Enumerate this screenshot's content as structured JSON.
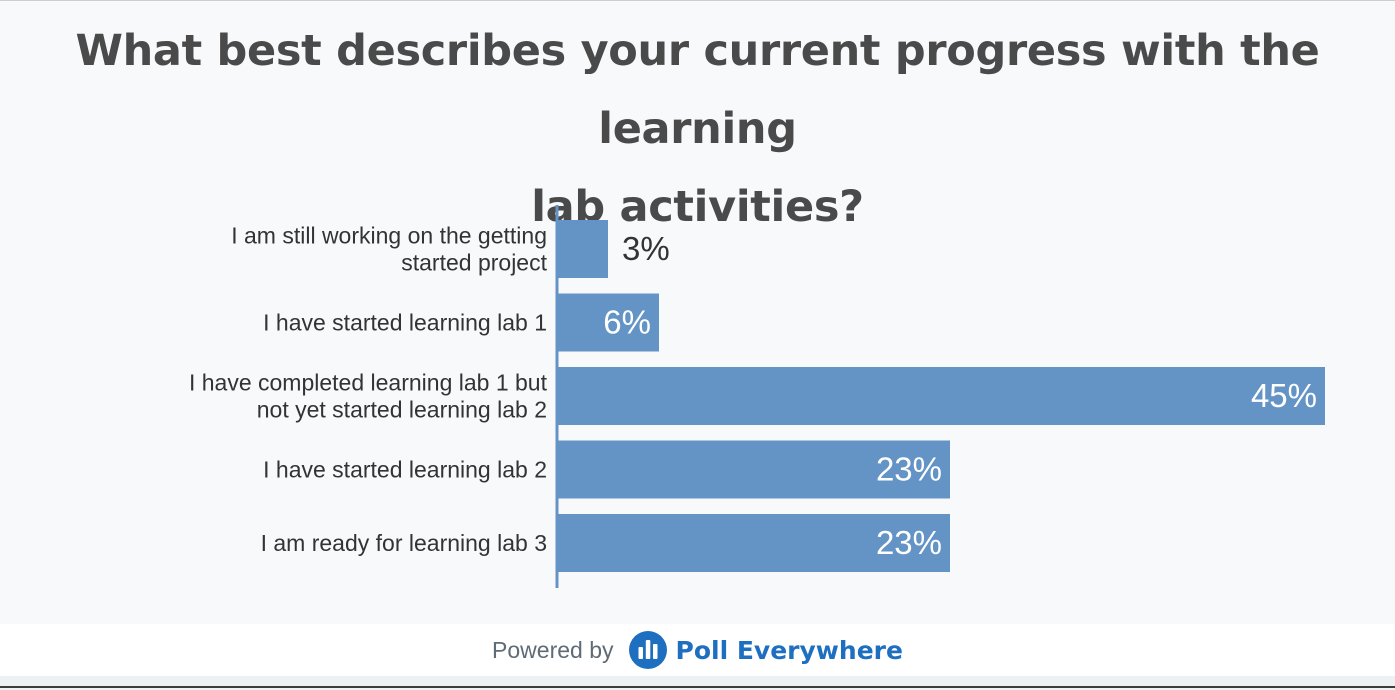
{
  "chart_data": {
    "type": "bar",
    "orientation": "horizontal",
    "title": "What best describes your current progress with the learning lab activities?",
    "title_lines": [
      "What best describes your current progress with the learning",
      "lab activities?"
    ],
    "categories": [
      [
        "I am still working on the getting",
        "started project"
      ],
      [
        "I have started learning lab 1"
      ],
      [
        "I have completed learning lab 1 but",
        "not yet started learning lab 2"
      ],
      [
        "I have started learning lab 2"
      ],
      [
        "I am ready for learning lab 3"
      ]
    ],
    "values": [
      3,
      6,
      45,
      23,
      23
    ],
    "value_labels": [
      "3%",
      "6%",
      "45%",
      "23%",
      "23%"
    ],
    "unit": "%",
    "xlim": [
      0,
      45
    ],
    "xlabel": "",
    "ylabel": "",
    "bar_color": "#6494c5",
    "grid": false
  },
  "footer": {
    "powered_by": "Powered by",
    "brand": "Poll Everywhere",
    "brand_color": "#1f6fc1",
    "logo_icon": "poll-everywhere-logo-icon"
  }
}
